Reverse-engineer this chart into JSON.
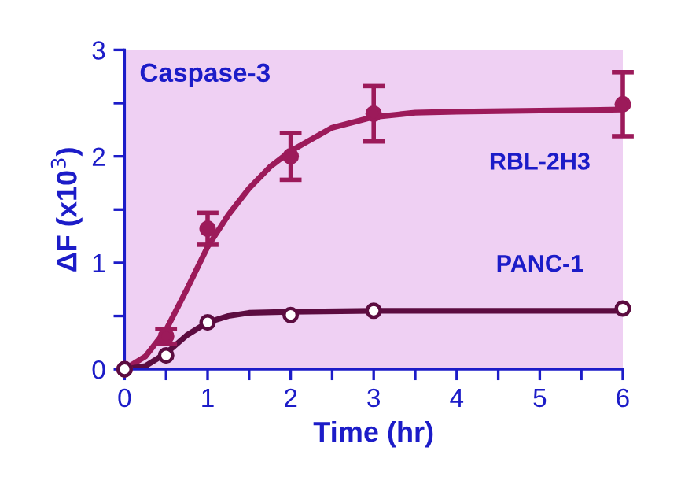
{
  "chart_data": {
    "type": "scatter",
    "title": "Caspase-3",
    "xlabel": "Time (hr)",
    "ylabel": "ΔF (x10$^{3}$)",
    "xlim": [
      0,
      6
    ],
    "xticks": [
      0,
      {
        "value": 0.5,
        "label": null
      },
      1,
      {
        "value": 1.5,
        "label": null
      },
      2,
      {
        "value": 2.5,
        "label": null
      },
      3,
      {
        "value": 3.5,
        "label": null
      },
      4,
      {
        "value": 4.5,
        "label": null
      },
      5,
      {
        "value": 5.5,
        "label": null
      },
      6
    ],
    "ylim": [
      0,
      3
    ],
    "yticks": [
      0,
      {
        "value": 0.5,
        "label": null
      },
      1,
      {
        "value": 1.5,
        "label": null
      },
      2,
      {
        "value": 2.5,
        "label": null
      },
      3
    ],
    "grid": false,
    "legend": false,
    "series": [
      {
        "type": "line",
        "marker": "none",
        "color": "#9c1a5a",
        "x": [
          0,
          0.25,
          0.5,
          0.75,
          1,
          1.25,
          1.5,
          1.75,
          2,
          2.5,
          3,
          3.5,
          4,
          5,
          6
        ],
        "values": [
          0,
          0.12,
          0.37,
          0.75,
          1.15,
          1.45,
          1.7,
          1.9,
          2.05,
          2.27,
          2.37,
          2.41,
          2.42,
          2.43,
          2.44
        ]
      },
      {
        "type": "line",
        "marker": "none",
        "color": "#5c0c40",
        "x": [
          0,
          0.25,
          0.5,
          0.75,
          1,
          1.25,
          1.5,
          2,
          3,
          6
        ],
        "values": [
          0,
          0.03,
          0.15,
          0.32,
          0.44,
          0.5,
          0.53,
          0.54,
          0.55,
          0.55
        ]
      },
      {
        "name": "RBL-2H3",
        "marker": "circle",
        "color": "#9c1a5a",
        "x": [
          0,
          0.5,
          1,
          2,
          3,
          6
        ],
        "values": [
          0,
          0.31,
          1.32,
          2.0,
          2.4,
          2.49
        ],
        "errors": [
          null,
          0.07,
          0.15,
          0.22,
          0.26,
          0.3
        ]
      },
      {
        "name": "PANC-1",
        "marker": "circle",
        "color": "#5c0c40",
        "x": [
          0,
          0.5,
          1,
          2,
          3,
          6
        ],
        "values": [
          0,
          0.13,
          0.44,
          0.51,
          0.55,
          0.57
        ]
      }
    ]
  }
}
